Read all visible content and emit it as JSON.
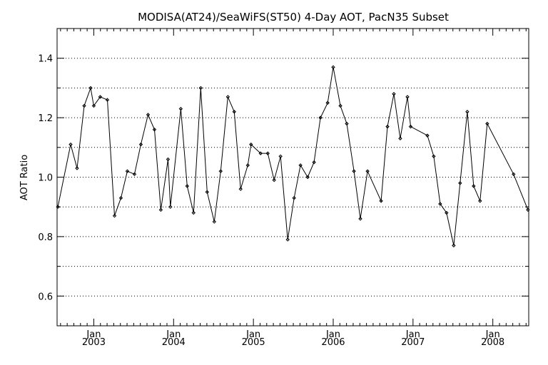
{
  "chart_data": {
    "type": "line",
    "title": "MODISA(AT24)/SeaWiFS(ST50) 4-Day AOT, PacN35 Subset",
    "xlabel": "",
    "ylabel": "AOT Ratio",
    "ylim": [
      0.5,
      1.5
    ],
    "xlim": [
      2002.54,
      2008.45
    ],
    "y_ticks": [
      "0.6",
      "0.8",
      "1.0",
      "1.2",
      "1.4"
    ],
    "x_ticks": [
      {
        "month": "Jan",
        "year": "2003",
        "x": 2003.0
      },
      {
        "month": "Jan",
        "year": "2004",
        "x": 2004.0
      },
      {
        "month": "Jan",
        "year": "2005",
        "x": 2005.0
      },
      {
        "month": "Jan",
        "year": "2006",
        "x": 2006.0
      },
      {
        "month": "Jan",
        "year": "2007",
        "x": 2007.0
      },
      {
        "month": "Jan",
        "year": "2008",
        "x": 2008.0
      }
    ],
    "grid": "horizontal dotted",
    "line_color": "#000000",
    "series": [
      {
        "name": "",
        "points": [
          [
            2002.55,
            0.9
          ],
          [
            2002.71,
            1.11
          ],
          [
            2002.79,
            1.03
          ],
          [
            2002.88,
            1.24
          ],
          [
            2002.96,
            1.3
          ],
          [
            2003.0,
            1.24
          ],
          [
            2003.08,
            1.27
          ],
          [
            2003.17,
            1.26
          ],
          [
            2003.26,
            0.87
          ],
          [
            2003.34,
            0.93
          ],
          [
            2003.42,
            1.02
          ],
          [
            2003.51,
            1.01
          ],
          [
            2003.59,
            1.11
          ],
          [
            2003.68,
            1.21
          ],
          [
            2003.76,
            1.16
          ],
          [
            2003.84,
            0.89
          ],
          [
            2003.93,
            1.06
          ],
          [
            2003.96,
            0.9
          ],
          [
            2004.09,
            1.23
          ],
          [
            2004.17,
            0.97
          ],
          [
            2004.25,
            0.88
          ],
          [
            2004.34,
            1.3
          ],
          [
            2004.42,
            0.95
          ],
          [
            2004.51,
            0.85
          ],
          [
            2004.59,
            1.02
          ],
          [
            2004.68,
            1.27
          ],
          [
            2004.76,
            1.22
          ],
          [
            2004.84,
            0.96
          ],
          [
            2004.93,
            1.04
          ],
          [
            2004.97,
            1.11
          ],
          [
            2005.09,
            1.08
          ],
          [
            2005.18,
            1.08
          ],
          [
            2005.26,
            0.99
          ],
          [
            2005.34,
            1.07
          ],
          [
            2005.43,
            0.79
          ],
          [
            2005.51,
            0.93
          ],
          [
            2005.59,
            1.04
          ],
          [
            2005.68,
            1.0
          ],
          [
            2005.76,
            1.05
          ],
          [
            2005.84,
            1.2
          ],
          [
            2005.93,
            1.25
          ],
          [
            2006.0,
            1.37
          ],
          [
            2006.09,
            1.24
          ],
          [
            2006.17,
            1.18
          ],
          [
            2006.26,
            1.02
          ],
          [
            2006.34,
            0.86
          ],
          [
            2006.43,
            1.02
          ],
          [
            2006.6,
            0.92
          ],
          [
            2006.68,
            1.17
          ],
          [
            2006.76,
            1.28
          ],
          [
            2006.84,
            1.13
          ],
          [
            2006.93,
            1.27
          ],
          [
            2006.97,
            1.17
          ],
          [
            2007.18,
            1.14
          ],
          [
            2007.26,
            1.07
          ],
          [
            2007.34,
            0.91
          ],
          [
            2007.42,
            0.88
          ],
          [
            2007.51,
            0.77
          ],
          [
            2007.59,
            0.98
          ],
          [
            2007.68,
            1.22
          ],
          [
            2007.76,
            0.97
          ],
          [
            2007.84,
            0.92
          ],
          [
            2007.93,
            1.18
          ],
          [
            2008.26,
            1.01
          ],
          [
            2008.44,
            0.89
          ]
        ]
      }
    ]
  }
}
